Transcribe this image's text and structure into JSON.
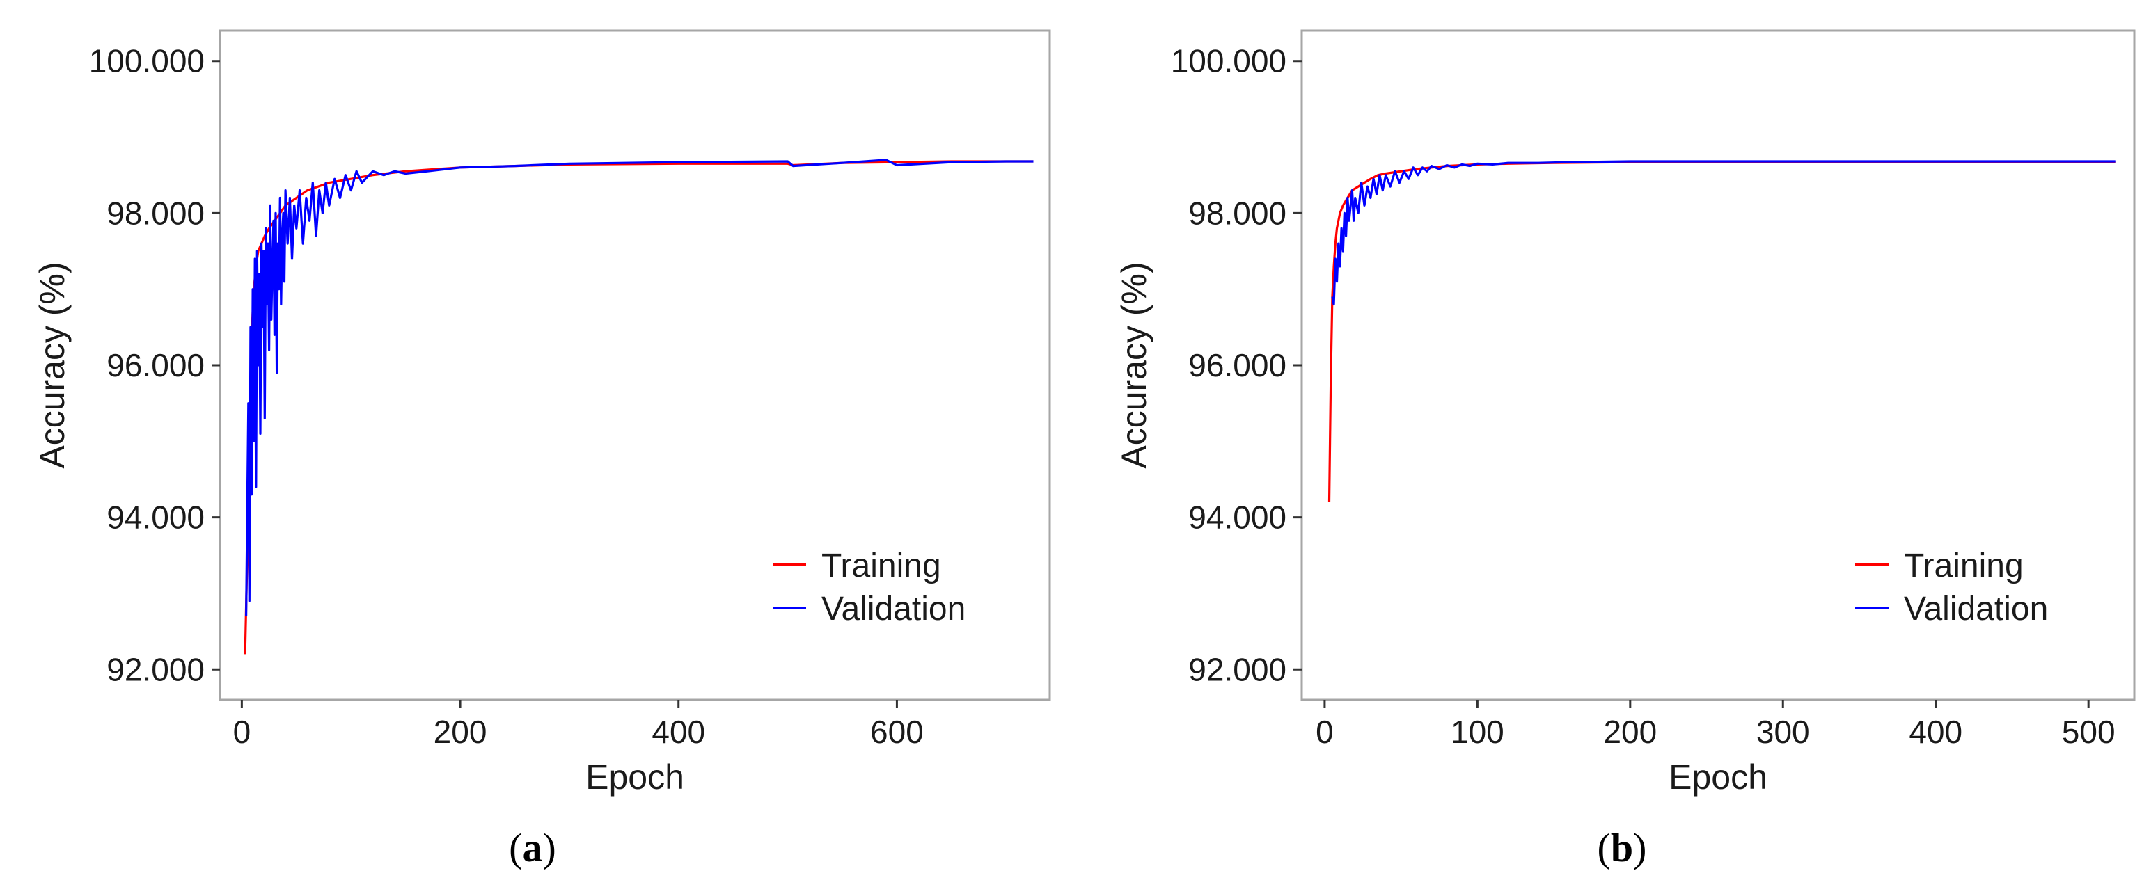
{
  "colors": {
    "training": "#ff0000",
    "validation": "#0000ff",
    "frame": "#a6a6a6",
    "tick": "#333333"
  },
  "chart_data": [
    {
      "type": "line",
      "panel_label": "a",
      "xlabel": "Epoch",
      "ylabel": "Accuracy (%)",
      "xlim": [
        -20,
        740
      ],
      "ylim": [
        91.6,
        100.4
      ],
      "xticks": [
        0,
        200,
        400,
        600
      ],
      "yticks": [
        92.0,
        94.0,
        96.0,
        98.0,
        100.0
      ],
      "ytick_labels": [
        "92.000",
        "94.000",
        "96.000",
        "98.000",
        "100.000"
      ],
      "xtick_labels": [
        "0",
        "200",
        "400",
        "600"
      ],
      "grid": false,
      "legend": "bottom-right",
      "series": [
        {
          "name": "Training",
          "color": "#ff0000",
          "x": [
            3,
            5,
            7,
            9,
            11,
            13,
            15,
            18,
            21,
            25,
            30,
            35,
            40,
            50,
            60,
            70,
            80,
            100,
            120,
            150,
            200,
            250,
            300,
            400,
            500,
            505,
            550,
            600,
            650,
            700,
            725
          ],
          "y": [
            92.2,
            93.5,
            95.3,
            96.4,
            97.0,
            97.3,
            97.5,
            97.6,
            97.7,
            97.8,
            97.9,
            98.0,
            98.1,
            98.2,
            98.3,
            98.35,
            98.4,
            98.45,
            98.5,
            98.55,
            98.6,
            98.62,
            98.64,
            98.65,
            98.65,
            98.63,
            98.66,
            98.67,
            98.68,
            98.68,
            98.68
          ]
        },
        {
          "name": "Validation",
          "color": "#0000ff",
          "x": [
            4,
            6,
            7,
            8,
            9,
            10,
            11,
            12,
            13,
            14,
            15,
            16,
            17,
            18,
            19,
            20,
            21,
            22,
            23,
            24,
            25,
            26,
            27,
            28,
            29,
            30,
            31,
            32,
            33,
            34,
            35,
            36,
            37,
            38,
            39,
            40,
            42,
            44,
            46,
            48,
            50,
            53,
            56,
            59,
            62,
            65,
            68,
            71,
            74,
            77,
            80,
            85,
            90,
            95,
            100,
            105,
            110,
            120,
            130,
            140,
            150,
            170,
            200,
            250,
            300,
            400,
            500,
            505,
            550,
            590,
            600,
            650,
            700,
            725
          ],
          "y": [
            92.7,
            95.5,
            92.9,
            96.5,
            94.3,
            97.0,
            95.0,
            97.4,
            94.4,
            97.5,
            96.0,
            97.2,
            95.1,
            97.6,
            96.5,
            97.5,
            95.3,
            97.8,
            96.8,
            97.6,
            96.2,
            98.1,
            96.6,
            97.3,
            97.9,
            96.4,
            98.0,
            95.9,
            97.6,
            97.0,
            98.2,
            96.8,
            97.7,
            98.0,
            97.1,
            98.3,
            97.6,
            98.2,
            97.4,
            98.1,
            97.8,
            98.3,
            97.6,
            98.2,
            97.9,
            98.4,
            97.7,
            98.3,
            98.0,
            98.4,
            98.1,
            98.45,
            98.2,
            98.5,
            98.3,
            98.55,
            98.4,
            98.55,
            98.5,
            98.55,
            98.52,
            98.55,
            98.6,
            98.62,
            98.65,
            98.67,
            98.68,
            98.62,
            98.66,
            98.7,
            98.63,
            98.67,
            98.68,
            98.68
          ]
        }
      ]
    },
    {
      "type": "line",
      "panel_label": "b",
      "xlabel": "Epoch",
      "ylabel": "Accuracy (%)",
      "xlim": [
        -15,
        530
      ],
      "ylim": [
        91.6,
        100.4
      ],
      "xticks": [
        0,
        100,
        200,
        300,
        400,
        500
      ],
      "yticks": [
        92.0,
        94.0,
        96.0,
        98.0,
        100.0
      ],
      "ytick_labels": [
        "92.000",
        "94.000",
        "96.000",
        "98.000",
        "100.000"
      ],
      "xtick_labels": [
        "0",
        "100",
        "200",
        "300",
        "400",
        "500"
      ],
      "grid": false,
      "legend": "bottom-right",
      "series": [
        {
          "name": "Training",
          "color": "#ff0000",
          "x": [
            3,
            4,
            5,
            6,
            7,
            8,
            10,
            12,
            15,
            18,
            22,
            26,
            30,
            35,
            40,
            50,
            60,
            70,
            80,
            100,
            120,
            150,
            200,
            300,
            400,
            500,
            518
          ],
          "y": [
            94.2,
            95.8,
            96.9,
            97.3,
            97.6,
            97.8,
            98.0,
            98.1,
            98.2,
            98.3,
            98.35,
            98.4,
            98.45,
            98.5,
            98.52,
            98.55,
            98.58,
            98.6,
            98.62,
            98.64,
            98.65,
            98.66,
            98.67,
            98.67,
            98.67,
            98.67,
            98.67
          ]
        },
        {
          "name": "Validation",
          "color": "#0000ff",
          "x": [
            5,
            6,
            7,
            8,
            9,
            10,
            11,
            12,
            13,
            14,
            15,
            16,
            17,
            18,
            19,
            20,
            22,
            24,
            26,
            28,
            30,
            32,
            34,
            36,
            38,
            40,
            43,
            46,
            49,
            52,
            55,
            58,
            61,
            64,
            67,
            70,
            75,
            80,
            85,
            90,
            95,
            100,
            110,
            120,
            140,
            160,
            200,
            300,
            400,
            500,
            518
          ],
          "y": [
            96.9,
            96.8,
            97.4,
            97.1,
            97.6,
            97.3,
            97.8,
            97.5,
            98.0,
            97.7,
            98.2,
            97.9,
            98.1,
            98.3,
            97.9,
            98.2,
            98.0,
            98.4,
            98.1,
            98.35,
            98.2,
            98.45,
            98.25,
            98.5,
            98.3,
            98.5,
            98.35,
            98.55,
            98.4,
            98.55,
            98.45,
            98.6,
            98.5,
            98.6,
            98.55,
            98.62,
            98.58,
            98.63,
            98.6,
            98.64,
            98.62,
            98.65,
            98.64,
            98.66,
            98.66,
            98.67,
            98.68,
            98.68,
            98.68,
            98.68,
            98.68
          ]
        }
      ]
    }
  ]
}
